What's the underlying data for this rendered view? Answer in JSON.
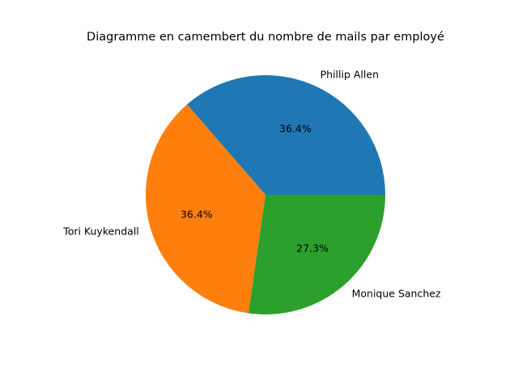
{
  "chart_data": {
    "type": "pie",
    "title": "Diagramme en camembert du nombre de mails par employé",
    "labels": [
      "Phillip Allen",
      "Tori Kuykendall",
      "Monique Sanchez"
    ],
    "values": [
      36.4,
      36.4,
      27.3
    ],
    "autopct": [
      "36.4%",
      "36.4%",
      "27.3%"
    ],
    "colors": [
      "#1f77b4",
      "#ff7f0e",
      "#2ca02c"
    ],
    "start_angle_deg": 0,
    "direction": "counterclockwise",
    "legend": "none"
  }
}
